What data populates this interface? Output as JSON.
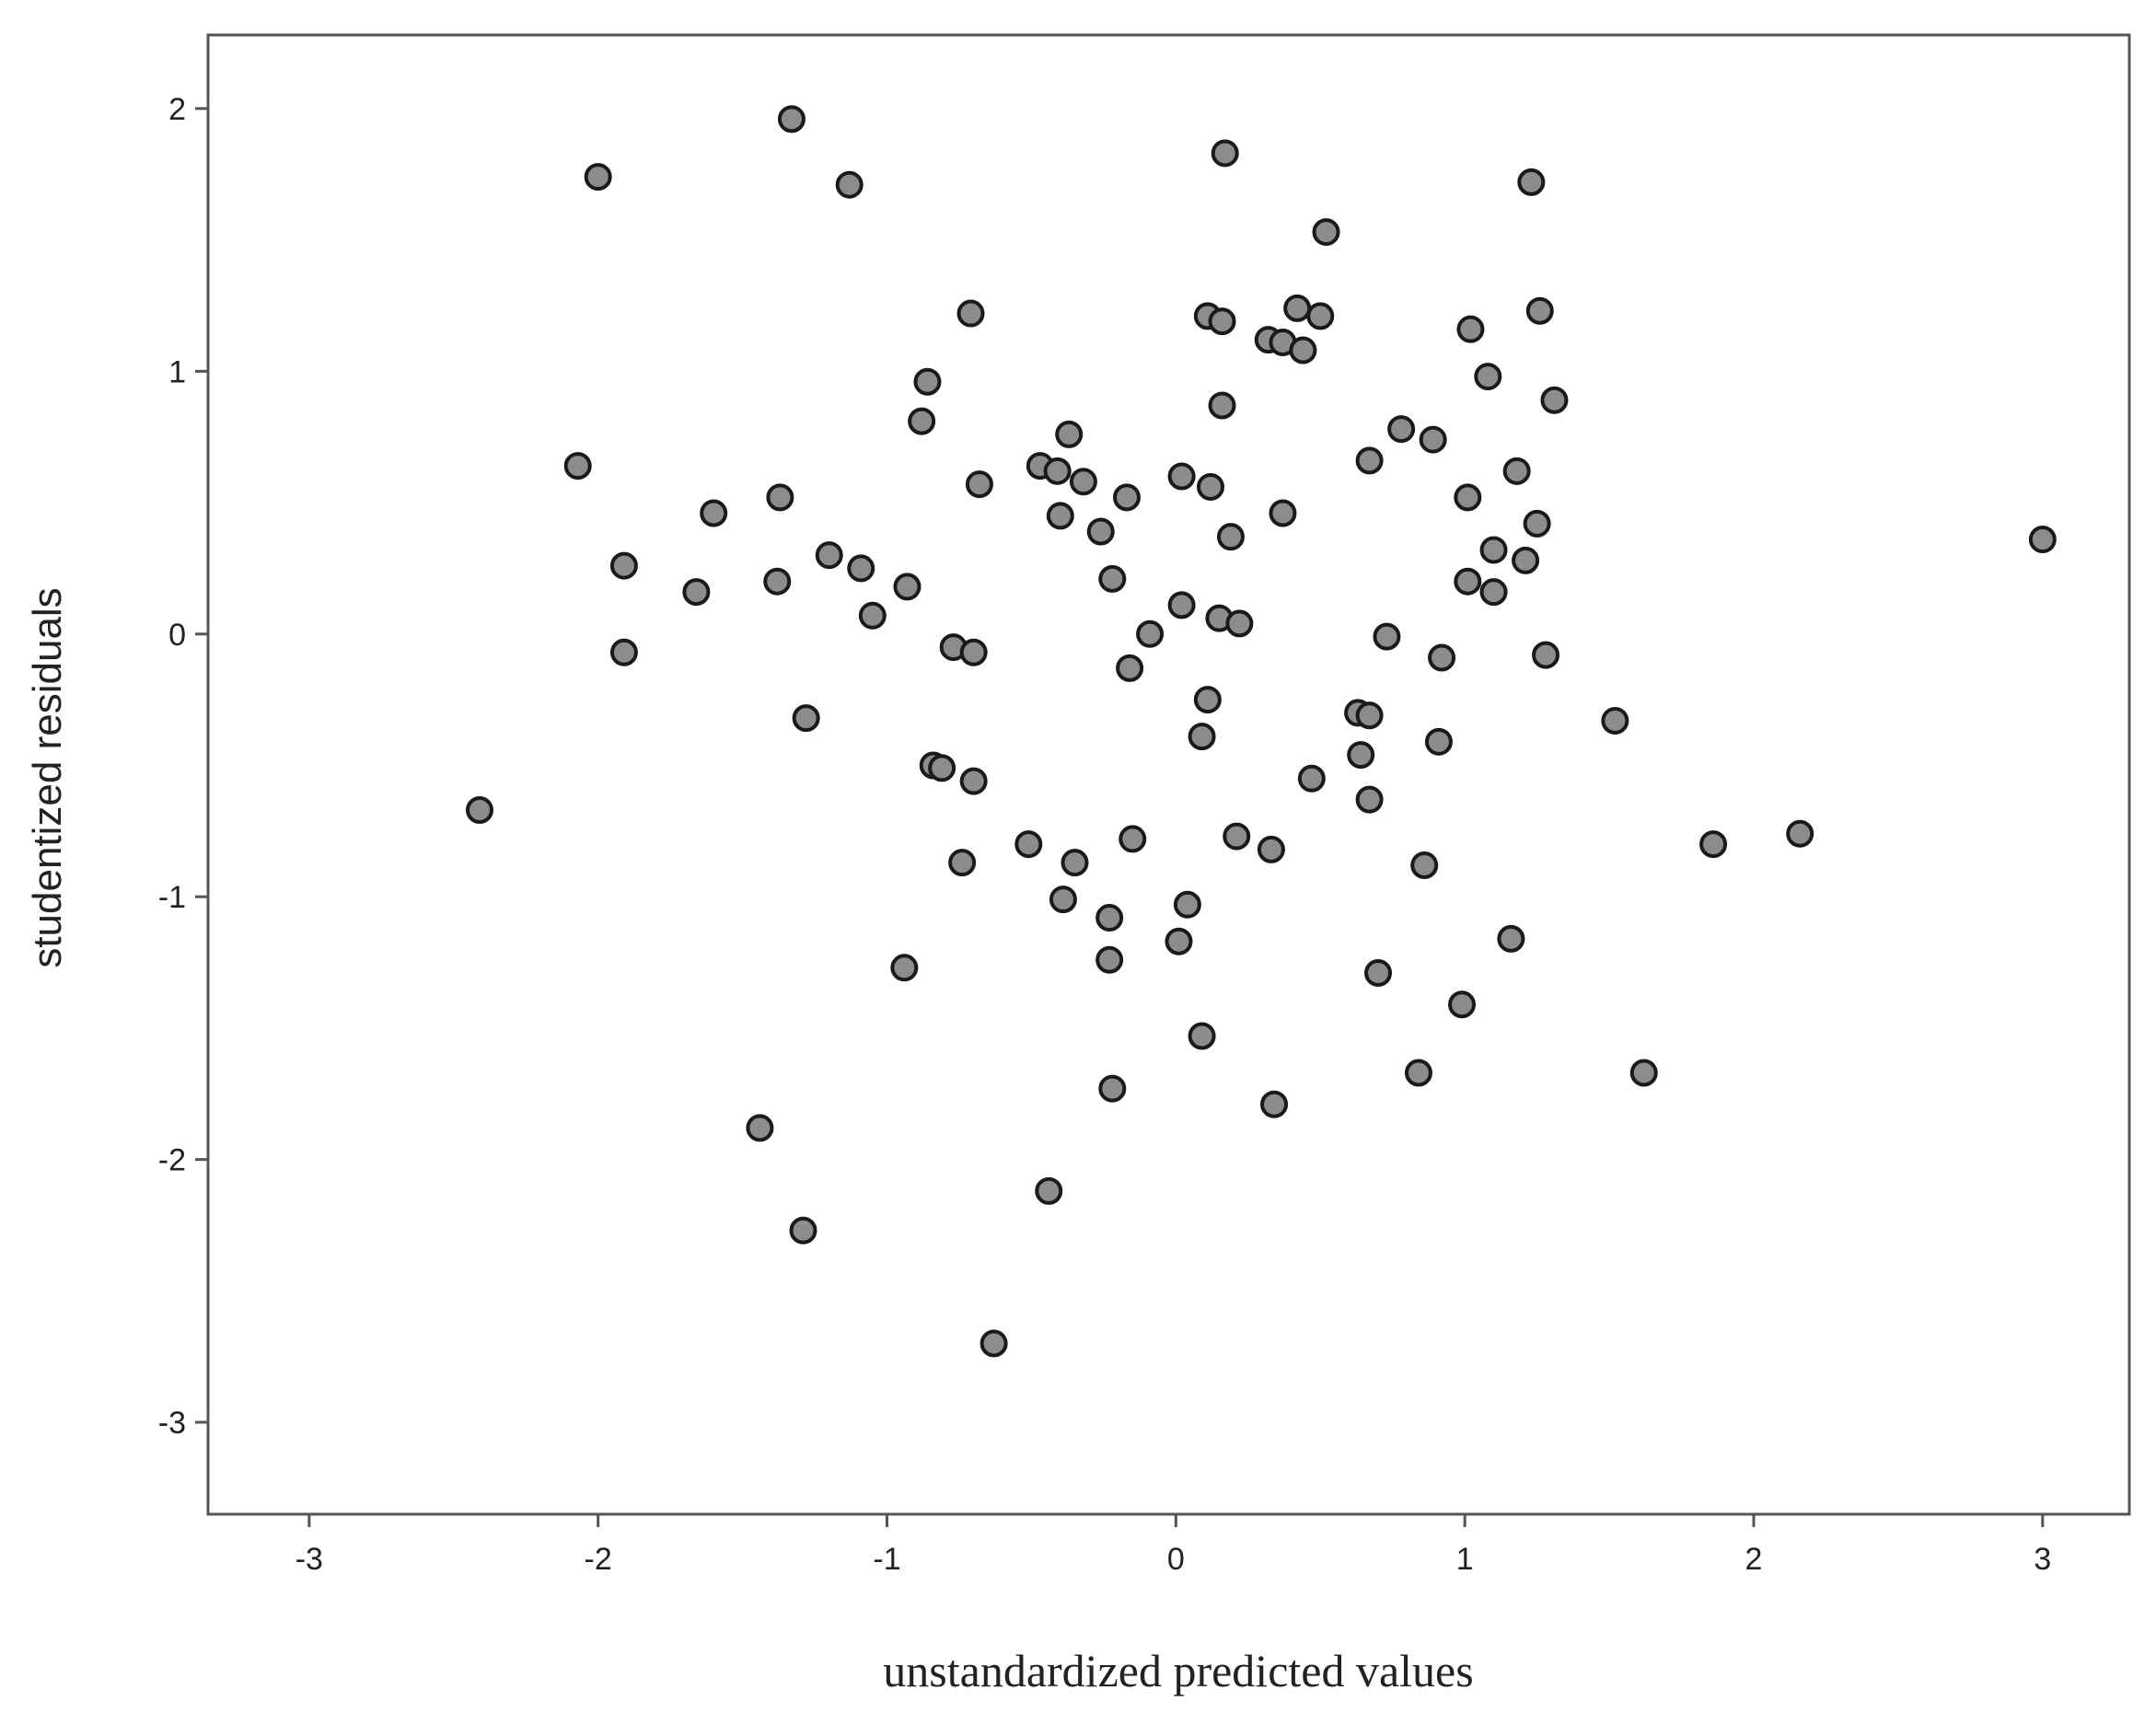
{
  "chart_data": {
    "type": "scatter",
    "xlabel": "unstandardized predicted values",
    "ylabel": "studentized residuals",
    "xlim": [
      -3.35,
      3.3
    ],
    "ylim": [
      -3.35,
      2.28
    ],
    "x_ticks": [
      -3,
      -2,
      -1,
      0,
      1,
      2,
      3
    ],
    "y_ticks": [
      2,
      1,
      0,
      -1,
      -2,
      -3
    ],
    "grid": false,
    "marker_color": "#8c8c8c",
    "marker_edge_color": "#1a1a1a",
    "points": [
      [
        -1.33,
        1.96
      ],
      [
        -2.0,
        1.74
      ],
      [
        -1.13,
        1.71
      ],
      [
        0.17,
        1.83
      ],
      [
        1.23,
        1.72
      ],
      [
        0.52,
        1.53
      ],
      [
        -0.71,
        1.22
      ],
      [
        0.11,
        1.21
      ],
      [
        0.16,
        1.19
      ],
      [
        0.32,
        1.12
      ],
      [
        0.37,
        1.11
      ],
      [
        0.42,
        1.24
      ],
      [
        0.44,
        1.08
      ],
      [
        0.5,
        1.21
      ],
      [
        1.02,
        1.16
      ],
      [
        1.26,
        1.23
      ],
      [
        -0.86,
        0.96
      ],
      [
        1.08,
        0.98
      ],
      [
        0.16,
        0.87
      ],
      [
        1.31,
        0.89
      ],
      [
        -0.88,
        0.81
      ],
      [
        -0.37,
        0.76
      ],
      [
        0.78,
        0.78
      ],
      [
        0.89,
        0.74
      ],
      [
        0.67,
        0.66
      ],
      [
        -2.07,
        0.64
      ],
      [
        -0.47,
        0.64
      ],
      [
        -0.41,
        0.62
      ],
      [
        -0.32,
        0.58
      ],
      [
        0.02,
        0.6
      ],
      [
        0.12,
        0.56
      ],
      [
        1.18,
        0.62
      ],
      [
        -0.68,
        0.57
      ],
      [
        -1.37,
        0.52
      ],
      [
        -0.17,
        0.52
      ],
      [
        1.01,
        0.52
      ],
      [
        -1.6,
        0.46
      ],
      [
        -0.4,
        0.45
      ],
      [
        0.37,
        0.46
      ],
      [
        -0.26,
        0.39
      ],
      [
        0.19,
        0.37
      ],
      [
        1.25,
        0.42
      ],
      [
        -1.2,
        0.3
      ],
      [
        -1.91,
        0.26
      ],
      [
        -1.09,
        0.25
      ],
      [
        1.1,
        0.32
      ],
      [
        1.21,
        0.28
      ],
      [
        -1.38,
        0.2
      ],
      [
        -0.93,
        0.18
      ],
      [
        -0.22,
        0.21
      ],
      [
        1.01,
        0.2
      ],
      [
        -1.66,
        0.16
      ],
      [
        1.1,
        0.16
      ],
      [
        0.02,
        0.11
      ],
      [
        -1.05,
        0.07
      ],
      [
        0.15,
        0.06
      ],
      [
        0.22,
        0.04
      ],
      [
        -0.09,
        0.0
      ],
      [
        0.73,
        -0.01
      ],
      [
        -0.77,
        -0.05
      ],
      [
        -0.7,
        -0.07
      ],
      [
        -1.91,
        -0.07
      ],
      [
        0.92,
        -0.09
      ],
      [
        1.28,
        -0.08
      ],
      [
        -0.16,
        -0.13
      ],
      [
        0.11,
        -0.25
      ],
      [
        0.63,
        -0.3
      ],
      [
        0.67,
        -0.31
      ],
      [
        -1.28,
        -0.32
      ],
      [
        1.52,
        -0.33
      ],
      [
        0.09,
        -0.39
      ],
      [
        0.91,
        -0.41
      ],
      [
        0.64,
        -0.46
      ],
      [
        -0.84,
        -0.5
      ],
      [
        -0.81,
        -0.51
      ],
      [
        -0.7,
        -0.56
      ],
      [
        0.47,
        -0.55
      ],
      [
        -2.41,
        -0.67
      ],
      [
        0.67,
        -0.63
      ],
      [
        2.16,
        -0.76
      ],
      [
        -0.51,
        -0.8
      ],
      [
        -0.15,
        -0.78
      ],
      [
        0.21,
        -0.77
      ],
      [
        0.33,
        -0.82
      ],
      [
        1.86,
        -0.8
      ],
      [
        -0.74,
        -0.87
      ],
      [
        -0.35,
        -0.87
      ],
      [
        0.86,
        -0.88
      ],
      [
        -0.39,
        -1.01
      ],
      [
        0.04,
        -1.03
      ],
      [
        -0.23,
        -1.08
      ],
      [
        0.01,
        -1.17
      ],
      [
        1.16,
        -1.16
      ],
      [
        -0.94,
        -1.27
      ],
      [
        -0.23,
        -1.24
      ],
      [
        0.7,
        -1.29
      ],
      [
        0.99,
        -1.41
      ],
      [
        0.09,
        -1.53
      ],
      [
        0.84,
        -1.67
      ],
      [
        1.62,
        -1.67
      ],
      [
        -0.22,
        -1.73
      ],
      [
        0.34,
        -1.79
      ],
      [
        -1.44,
        -1.88
      ],
      [
        -0.44,
        -2.12
      ],
      [
        -1.29,
        -2.27
      ],
      [
        -0.63,
        -2.7
      ],
      [
        3.0,
        0.36
      ]
    ]
  }
}
